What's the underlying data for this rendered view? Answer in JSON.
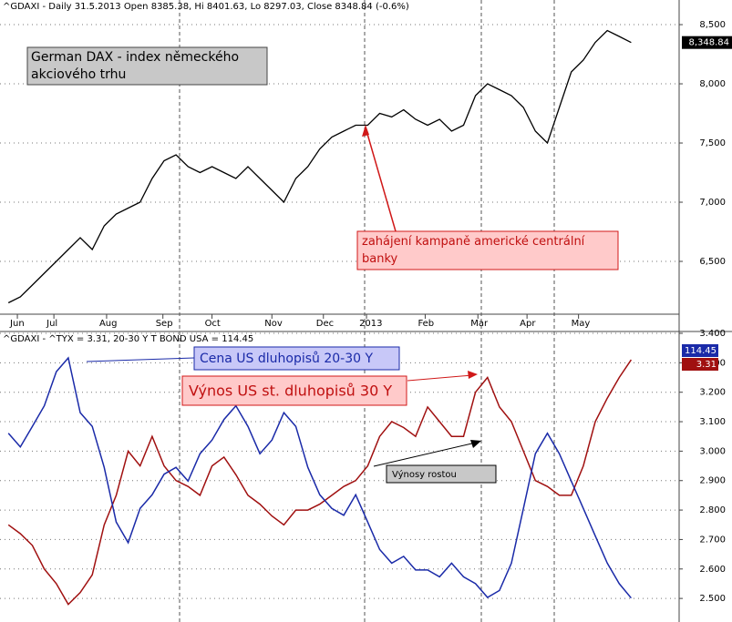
{
  "chart_data": [
    {
      "type": "line",
      "title": "^GDAXI - Daily 31.5.2013 Open 8385.38, Hi 8401.63, Lo 8297.03, Close 8348.84 (-0.6%)",
      "values": [
        6150,
        6200,
        6300,
        6400,
        6500,
        6600,
        6700,
        6600,
        6800,
        6900,
        6950,
        7000,
        7200,
        7350,
        7400,
        7300,
        7250,
        7300,
        7250,
        7200,
        7300,
        7200,
        7100,
        7000,
        7200,
        7300,
        7450,
        7550,
        7600,
        7650,
        7650,
        7750,
        7720,
        7780,
        7700,
        7650,
        7700,
        7600,
        7650,
        7900,
        8000,
        7950,
        7900,
        7800,
        7600,
        7500,
        7800,
        8100,
        8200,
        8350,
        8450,
        8400,
        8348.84
      ],
      "value_labels": [
        null,
        null,
        null,
        null,
        null,
        null,
        null,
        null,
        null,
        null,
        null,
        null,
        null,
        null,
        null,
        null,
        null,
        null,
        null,
        null,
        null,
        null,
        null,
        null,
        null,
        null,
        null,
        null,
        null,
        null,
        null,
        null,
        null,
        null,
        null,
        null,
        null,
        null,
        null,
        null,
        null,
        null,
        null,
        null,
        null,
        null,
        null,
        null,
        null,
        null,
        null,
        null,
        "8,348.84"
      ],
      "color": "#000000",
      "xlim": [
        -0.7,
        56
      ],
      "xticks": [
        {
          "value": 0.75,
          "label": "Jun"
        },
        {
          "value": 3.8,
          "label": "Jul"
        },
        {
          "value": 8.2,
          "label": "Aug"
        },
        {
          "value": 12.9,
          "label": "Sep"
        },
        {
          "value": 17,
          "label": "Oct"
        },
        {
          "value": 22,
          "label": "Nov"
        },
        {
          "value": 26.3,
          "label": "Dec"
        },
        {
          "value": 29.9,
          "label": "2013"
        },
        {
          "value": 34.8,
          "label": "Feb"
        },
        {
          "value": 39.2,
          "label": "Mar"
        },
        {
          "value": 43.3,
          "label": "Apr"
        },
        {
          "value": 47.6,
          "label": "May"
        }
      ],
      "ylim": [
        6054,
        8708
      ],
      "yticks": [
        {
          "value": 6500,
          "label": "6,500"
        },
        {
          "value": 7000,
          "label": "7,000"
        },
        {
          "value": 7500,
          "label": "7,500"
        },
        {
          "value": 8000,
          "label": "8,000"
        },
        {
          "value": 8500,
          "label": "8,500"
        }
      ],
      "grid": true,
      "annotations": [
        "German DAX - index německého akciového trhu",
        "zahájení kampaně americké centrální banky"
      ]
    },
    {
      "type": "line",
      "title": "^GDAXI - ^TYX = 3.31, 20-30 Y T BOND USA = 114.45",
      "xlim": [
        -0.7,
        56
      ],
      "ylim": [
        2.42,
        3.4
      ],
      "yticks": [
        {
          "value": 2.5,
          "label": "2.500"
        },
        {
          "value": 2.6,
          "label": "2.600"
        },
        {
          "value": 2.7,
          "label": "2.700"
        },
        {
          "value": 2.8,
          "label": "2.800"
        },
        {
          "value": 2.9,
          "label": "2.900"
        },
        {
          "value": 3.0,
          "label": "3.000"
        },
        {
          "value": 3.1,
          "label": "3.100"
        },
        {
          "value": 3.2,
          "label": "3.200"
        },
        {
          "value": 3.3,
          "label": "3.300"
        },
        {
          "value": 3.4,
          "label": "3.400"
        }
      ],
      "y2lim": [
        112.7,
        133.8
      ],
      "grid": true,
      "series": [
        {
          "name": "^TYX",
          "color": "#a01010",
          "values": [
            2.75,
            2.72,
            2.68,
            2.6,
            2.55,
            2.48,
            2.52,
            2.58,
            2.75,
            2.85,
            3.0,
            2.95,
            3.05,
            2.95,
            2.9,
            2.88,
            2.85,
            2.95,
            2.98,
            2.92,
            2.85,
            2.82,
            2.78,
            2.75,
            2.8,
            2.8,
            2.82,
            2.85,
            2.88,
            2.9,
            2.95,
            3.05,
            3.1,
            3.08,
            3.05,
            3.15,
            3.1,
            3.05,
            3.05,
            3.2,
            3.25,
            3.15,
            3.1,
            3.0,
            2.9,
            2.88,
            2.85,
            2.85,
            2.95,
            3.1,
            3.18,
            3.25,
            3.31
          ]
        },
        {
          "name": "20-30 Y T BOND USA",
          "color": "#1a2aa8",
          "axis": "y2",
          "values": [
            126.5,
            125.5,
            127,
            128.5,
            131,
            132,
            128,
            127,
            124,
            120,
            118.5,
            121,
            122,
            123.5,
            124,
            123,
            125,
            126,
            127.5,
            128.5,
            127,
            125,
            126,
            128,
            127,
            124,
            122,
            121,
            120.5,
            122,
            120,
            118,
            117,
            117.5,
            116.5,
            116.5,
            116,
            117,
            116,
            115.5,
            114.5,
            115,
            117,
            121,
            125,
            126.5,
            125,
            123,
            121,
            119,
            117,
            115.5,
            114.45
          ]
        }
      ],
      "annotations": [
        "Cena US dluhopisů 20-30 Y",
        "Výnos US st. dluhopisů 30 Y",
        "Výnosy rostou"
      ]
    }
  ]
}
